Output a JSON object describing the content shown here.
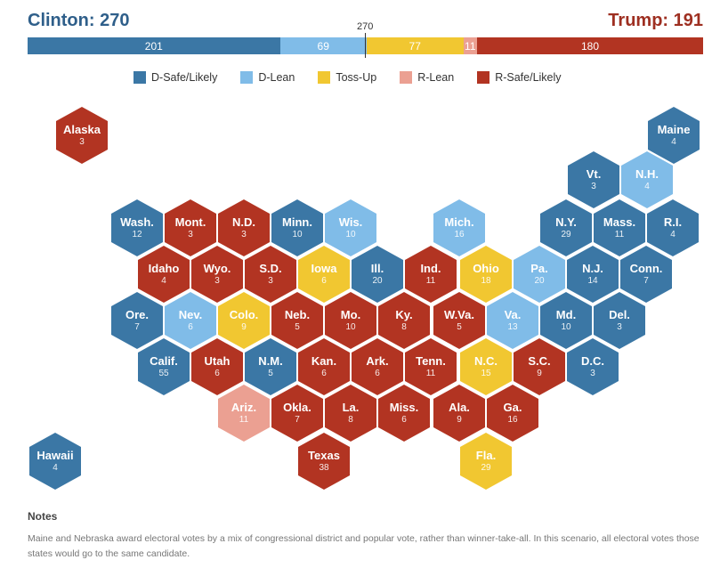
{
  "header": {
    "clinton_label": "Clinton: 270",
    "trump_label": "Trump: 191",
    "marker_label": "270"
  },
  "colors": {
    "d_safe": "#3b77a5",
    "d_lean": "#80bce8",
    "tossup": "#f1c731",
    "r_lean": "#eba092",
    "r_safe": "#b23422"
  },
  "bar": [
    {
      "cat": "d_safe",
      "value": 201,
      "label": "201"
    },
    {
      "cat": "d_lean",
      "value": 69,
      "label": "69"
    },
    {
      "cat": "tossup",
      "value": 77,
      "label": "77"
    },
    {
      "cat": "r_lean",
      "value": 11,
      "label": "11"
    },
    {
      "cat": "r_safe",
      "value": 180,
      "label": "180"
    }
  ],
  "legend": [
    {
      "cat": "d_safe",
      "label": "D-Safe/Likely"
    },
    {
      "cat": "d_lean",
      "label": "D-Lean"
    },
    {
      "cat": "tossup",
      "label": "Toss-Up"
    },
    {
      "cat": "r_lean",
      "label": "R-Lean"
    },
    {
      "cat": "r_safe",
      "label": "R-Safe/Likely"
    }
  ],
  "states": [
    {
      "name": "Alaska",
      "ev": "3",
      "cat": "r_safe"
    },
    {
      "name": "Maine",
      "ev": "4",
      "cat": "d_safe"
    },
    {
      "name": "Vt.",
      "ev": "3",
      "cat": "d_safe"
    },
    {
      "name": "N.H.",
      "ev": "4",
      "cat": "d_lean"
    },
    {
      "name": "Wash.",
      "ev": "12",
      "cat": "d_safe"
    },
    {
      "name": "Mont.",
      "ev": "3",
      "cat": "r_safe"
    },
    {
      "name": "N.D.",
      "ev": "3",
      "cat": "r_safe"
    },
    {
      "name": "Minn.",
      "ev": "10",
      "cat": "d_safe"
    },
    {
      "name": "Wis.",
      "ev": "10",
      "cat": "d_lean"
    },
    {
      "name": "Mich.",
      "ev": "16",
      "cat": "d_lean"
    },
    {
      "name": "N.Y.",
      "ev": "29",
      "cat": "d_safe"
    },
    {
      "name": "Mass.",
      "ev": "11",
      "cat": "d_safe"
    },
    {
      "name": "R.I.",
      "ev": "4",
      "cat": "d_safe"
    },
    {
      "name": "Idaho",
      "ev": "4",
      "cat": "r_safe"
    },
    {
      "name": "Wyo.",
      "ev": "3",
      "cat": "r_safe"
    },
    {
      "name": "S.D.",
      "ev": "3",
      "cat": "r_safe"
    },
    {
      "name": "Iowa",
      "ev": "6",
      "cat": "tossup"
    },
    {
      "name": "Ill.",
      "ev": "20",
      "cat": "d_safe"
    },
    {
      "name": "Ind.",
      "ev": "11",
      "cat": "r_safe"
    },
    {
      "name": "Ohio",
      "ev": "18",
      "cat": "tossup"
    },
    {
      "name": "Pa.",
      "ev": "20",
      "cat": "d_lean"
    },
    {
      "name": "N.J.",
      "ev": "14",
      "cat": "d_safe"
    },
    {
      "name": "Conn.",
      "ev": "7",
      "cat": "d_safe"
    },
    {
      "name": "Ore.",
      "ev": "7",
      "cat": "d_safe"
    },
    {
      "name": "Nev.",
      "ev": "6",
      "cat": "d_lean"
    },
    {
      "name": "Colo.",
      "ev": "9",
      "cat": "tossup"
    },
    {
      "name": "Neb.",
      "ev": "5",
      "cat": "r_safe"
    },
    {
      "name": "Mo.",
      "ev": "10",
      "cat": "r_safe"
    },
    {
      "name": "Ky.",
      "ev": "8",
      "cat": "r_safe"
    },
    {
      "name": "W.Va.",
      "ev": "5",
      "cat": "r_safe"
    },
    {
      "name": "Va.",
      "ev": "13",
      "cat": "d_lean"
    },
    {
      "name": "Md.",
      "ev": "10",
      "cat": "d_safe"
    },
    {
      "name": "Del.",
      "ev": "3",
      "cat": "d_safe"
    },
    {
      "name": "Calif.",
      "ev": "55",
      "cat": "d_safe"
    },
    {
      "name": "Utah",
      "ev": "6",
      "cat": "r_safe"
    },
    {
      "name": "N.M.",
      "ev": "5",
      "cat": "d_safe"
    },
    {
      "name": "Kan.",
      "ev": "6",
      "cat": "r_safe"
    },
    {
      "name": "Ark.",
      "ev": "6",
      "cat": "r_safe"
    },
    {
      "name": "Tenn.",
      "ev": "11",
      "cat": "r_safe"
    },
    {
      "name": "N.C.",
      "ev": "15",
      "cat": "tossup"
    },
    {
      "name": "S.C.",
      "ev": "9",
      "cat": "r_safe"
    },
    {
      "name": "D.C.",
      "ev": "3",
      "cat": "d_safe"
    },
    {
      "name": "Ariz.",
      "ev": "11",
      "cat": "r_lean"
    },
    {
      "name": "Okla.",
      "ev": "7",
      "cat": "r_safe"
    },
    {
      "name": "La.",
      "ev": "8",
      "cat": "r_safe"
    },
    {
      "name": "Miss.",
      "ev": "6",
      "cat": "r_safe"
    },
    {
      "name": "Ala.",
      "ev": "9",
      "cat": "r_safe"
    },
    {
      "name": "Ga.",
      "ev": "16",
      "cat": "r_safe"
    },
    {
      "name": "Hawaii",
      "ev": "4",
      "cat": "d_safe"
    },
    {
      "name": "Texas",
      "ev": "38",
      "cat": "r_safe"
    },
    {
      "name": "Fla.",
      "ev": "29",
      "cat": "tossup"
    }
  ],
  "notes": {
    "title": "Notes",
    "text": "Maine and Nebraska award electoral votes by a mix of congressional district and popular vote, rather than winner-take-all. In this scenario, all electoral votes those states would go to the same candidate."
  }
}
